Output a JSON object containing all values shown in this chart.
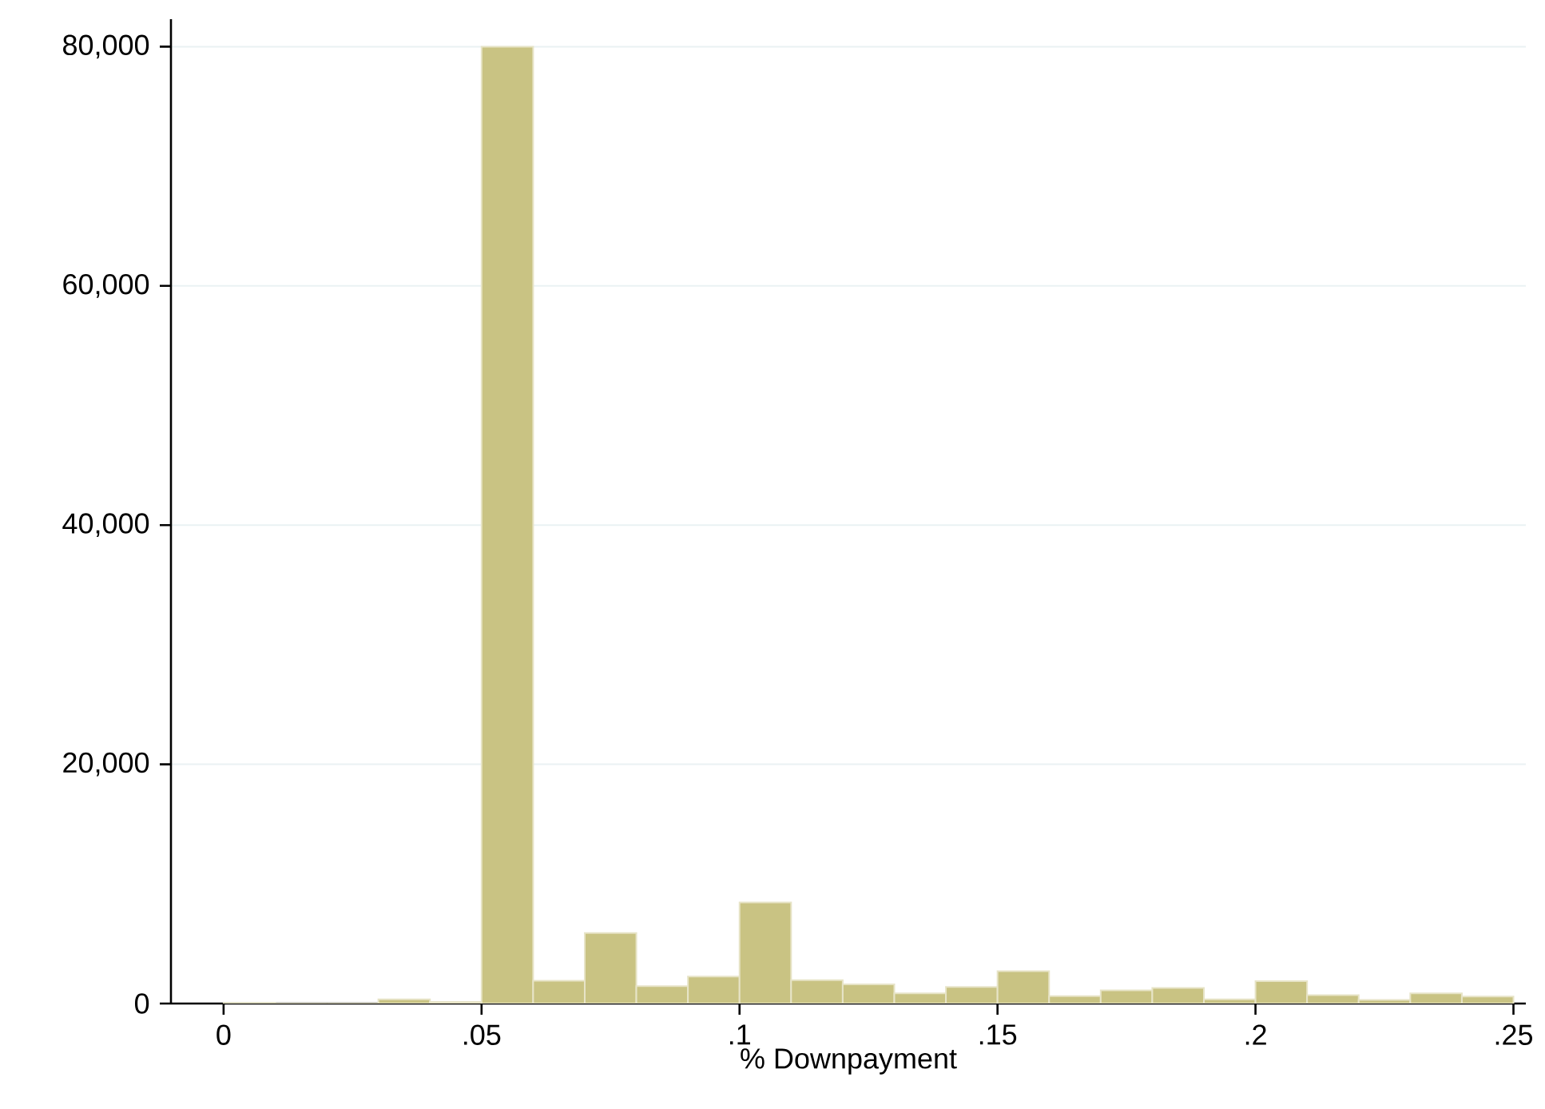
{
  "chart_data": {
    "type": "histogram",
    "xlabel": "% Downpayment",
    "bins": [
      0,
      0.01,
      0.02,
      0.03,
      0.04,
      0.05,
      0.06,
      0.07,
      0.08,
      0.09,
      0.1,
      0.11,
      0.12,
      0.13,
      0.14,
      0.15,
      0.16,
      0.17,
      0.18,
      0.19,
      0.2,
      0.21,
      0.22,
      0.23,
      0.24,
      0.25
    ],
    "values": [
      50,
      0,
      0,
      350,
      130,
      80000,
      1900,
      5900,
      1450,
      2250,
      8450,
      1950,
      1600,
      850,
      1380,
      2700,
      620,
      1100,
      1300,
      350,
      1870,
      700,
      300,
      850,
      580
    ],
    "color": "#c9c383",
    "xlim": [
      -0.0102,
      0.2524
    ],
    "ylim": [
      0,
      82300
    ],
    "xticks": [
      0,
      {
        "value": 0.05,
        "label": ".05"
      },
      {
        "value": 0.1,
        "label": ".1"
      },
      {
        "value": 0.15,
        "label": ".15"
      },
      {
        "value": 0.2,
        "label": ".2"
      },
      {
        "value": 0.25,
        "label": ".25"
      }
    ],
    "yticks": [
      0,
      {
        "value": 20000,
        "label": "20,000"
      },
      {
        "value": 40000,
        "label": "40,000"
      },
      {
        "value": 60000,
        "label": "60,000"
      },
      {
        "value": 80000,
        "label": "80,000"
      }
    ],
    "grid": "y"
  }
}
